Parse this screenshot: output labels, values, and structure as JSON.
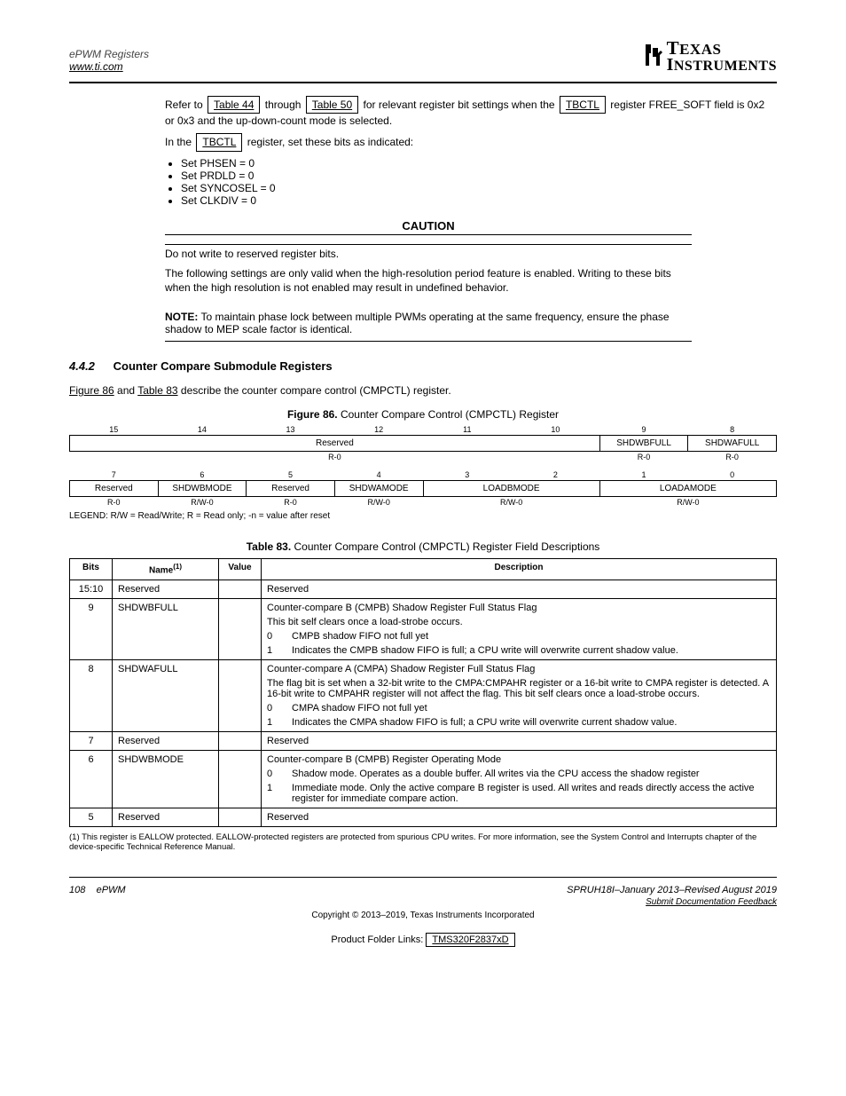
{
  "header": {
    "left": "ePWM Registers",
    "link": "www.ti.com",
    "logo": {
      "line1": "TEXAS",
      "line2": "INSTRUMENTS"
    }
  },
  "para1": {
    "pre": "Refer to ",
    "link1": "Table 44",
    "mid1": " through ",
    "link2": "Table 50",
    "mid2": " for relevant register bit settings when the ",
    "link3": "TBCTL",
    "post": " register FREE_SOFT field is 0x2 or 0x3 and the up-down-count mode is selected."
  },
  "para2": {
    "pre": "In the ",
    "link": "TBCTL",
    "post": " register, set these bits as indicated:"
  },
  "bullets": [
    "Set PHSEN = 0",
    "Set PRDLD = 0",
    "Set SYNCOSEL = 0",
    "Set CLKDIV = 0"
  ],
  "caution": {
    "title": "CAUTION",
    "lines": [
      "Do not write to reserved register bits.",
      "The following settings are only valid when the high-resolution period feature is enabled. Writing to these bits when the high resolution is not enabled may result in undefined behavior."
    ]
  },
  "note": {
    "title": "NOTE:",
    "body": "To maintain phase lock between multiple PWMs operating at the same frequency, ensure the phase shadow to MEP scale factor is identical."
  },
  "section": {
    "num": "4.4.2",
    "title": "Counter Compare Submodule Registers",
    "links": [
      "Figure 86",
      "Table 83"
    ],
    "body_pre": "",
    "body_mid": " and ",
    "body_post": " describe the counter compare control (CMPCTL) register."
  },
  "figure_caption": {
    "label": "Figure 86.",
    "title": "Counter Compare Control (CMPCTL) Register"
  },
  "bitfield": {
    "row1_nums": [
      "15",
      "14",
      "13",
      "12",
      "11",
      "10",
      "9",
      "8"
    ],
    "row1_boxes": [
      "",
      "",
      "",
      "Reserved",
      "",
      "",
      "SHDWBFULL",
      "SHDWAFULL"
    ],
    "row1_rw": [
      "",
      "",
      "",
      "R-0",
      "",
      "",
      "R-0",
      "R-0"
    ],
    "row2_nums": [
      "7",
      "6",
      "5",
      "4",
      "3",
      "2",
      "1",
      "0"
    ],
    "row2_boxes": [
      "Reserved",
      "SHDWBMODE",
      "Reserved",
      "SHDWAMODE",
      "LOADBMODE",
      "",
      "LOADAMODE",
      ""
    ],
    "row2_rw": [
      "R-0",
      "R/W-0",
      "R-0",
      "R/W-0",
      "R/W-0",
      "",
      "R/W-0",
      ""
    ]
  },
  "legend": "LEGEND: R/W = Read/Write; R = Read only; -n = value after reset",
  "table_caption": {
    "label": "Table 83.",
    "title": "Counter Compare Control (CMPCTL) Register Field Descriptions"
  },
  "desc_table": {
    "headers": [
      "Bits",
      "Name",
      "Value",
      "Description"
    ],
    "sup1": "(1)",
    "rows": [
      {
        "bits": "15:10",
        "name": "Reserved",
        "value": "",
        "desc": [
          {
            "key": "",
            "text": "Reserved"
          }
        ]
      },
      {
        "bits": "9",
        "name": "SHDWBFULL",
        "value": "",
        "desc": [
          {
            "key": "",
            "text": "Counter-compare B (CMPB) Shadow Register Full Status Flag"
          },
          {
            "key": "",
            "text": "This bit self clears once a load-strobe occurs."
          },
          {
            "key": "0",
            "text": "CMPB shadow FIFO not full yet"
          },
          {
            "key": "1",
            "text": "Indicates the CMPB shadow FIFO is full; a CPU write will overwrite current shadow value."
          }
        ]
      },
      {
        "bits": "8",
        "name": "SHDWAFULL",
        "value": "",
        "desc": [
          {
            "key": "",
            "text": "Counter-compare A (CMPA) Shadow Register Full Status Flag"
          },
          {
            "key": "",
            "text": "The flag bit is set when a 32-bit write to the CMPA:CMPAHR register or a 16-bit write to CMPA register is detected. A 16-bit write to CMPAHR register will not affect the flag. This bit self clears once a load-strobe occurs."
          },
          {
            "key": "0",
            "text": "CMPA shadow FIFO not full yet"
          },
          {
            "key": "1",
            "text": "Indicates the CMPA shadow FIFO is full; a CPU write will overwrite current shadow value."
          }
        ]
      },
      {
        "bits": "7",
        "name": "Reserved",
        "value": "",
        "desc": [
          {
            "key": "",
            "text": "Reserved"
          }
        ]
      },
      {
        "bits": "6",
        "name": "SHDWBMODE",
        "value": "",
        "desc": [
          {
            "key": "",
            "text": "Counter-compare B (CMPB) Register Operating Mode"
          },
          {
            "key": "0",
            "text": "Shadow mode. Operates as a double buffer. All writes via the CPU access the shadow register"
          },
          {
            "key": "1",
            "text": "Immediate mode. Only the active compare B register is used. All writes and reads directly access the active register for immediate compare action."
          }
        ]
      },
      {
        "bits": "5",
        "name": "Reserved",
        "value": "",
        "desc": [
          {
            "key": "",
            "text": "Reserved"
          }
        ]
      }
    ]
  },
  "footnote": "(1)    This register is EALLOW protected. EALLOW-protected registers are protected from spurious CPU writes. For more information, see the System Control and Interrupts chapter of the device-specific Technical Reference Manual.",
  "footer": {
    "page": "108",
    "title": "ePWM",
    "right": "SPRUH18I–January 2013–Revised August 2019",
    "sub": "Submit Documentation Feedback",
    "copyright_pre": "Copyright © 2013–2019, Texas Instruments Incorporated",
    "link_label": "Product Folder Links:",
    "link_text": "TMS320F2837xD"
  }
}
